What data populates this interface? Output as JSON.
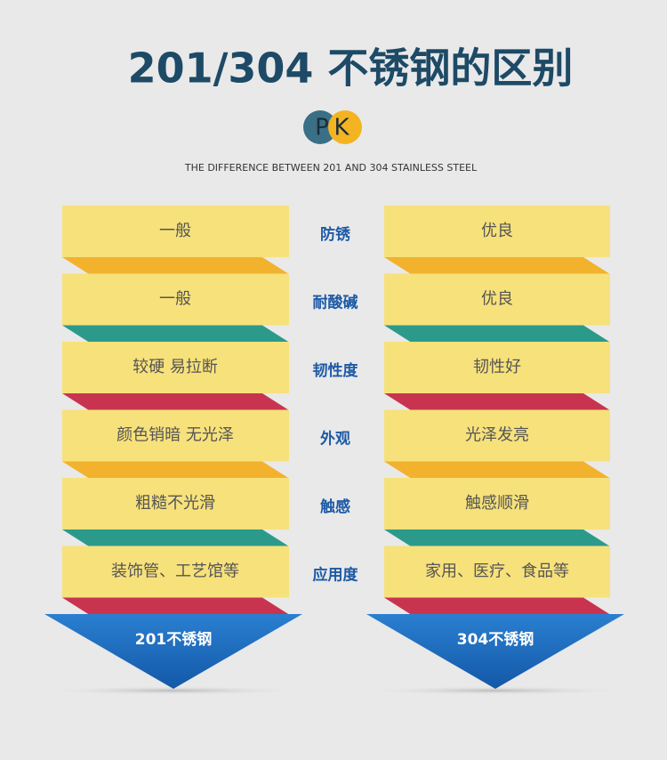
{
  "title": "201/304 不锈钢的区别",
  "badge_left": "P",
  "badge_right": "K",
  "subtitle": "THE DIFFERENCE BETWEEN 201 AND 304 STAINLESS STEEL",
  "rows": [
    {
      "left": "一般",
      "label": "防锈",
      "right": "优良"
    },
    {
      "left": "一般",
      "label": "耐酸碱",
      "right": "优良"
    },
    {
      "left": "较硬  易拉断",
      "label": "韧性度",
      "right": "韧性好"
    },
    {
      "left": "颜色销暗  无光泽",
      "label": "外观",
      "right": "光泽发亮"
    },
    {
      "left": "粗糙不光滑",
      "label": "触感",
      "right": "触感顺滑"
    },
    {
      "left": "装饰管、工艺馆等",
      "label": "应用度",
      "right": "家用、医疗、食品等"
    }
  ],
  "bottom": [
    "201不锈钢",
    "304不锈钢"
  ]
}
